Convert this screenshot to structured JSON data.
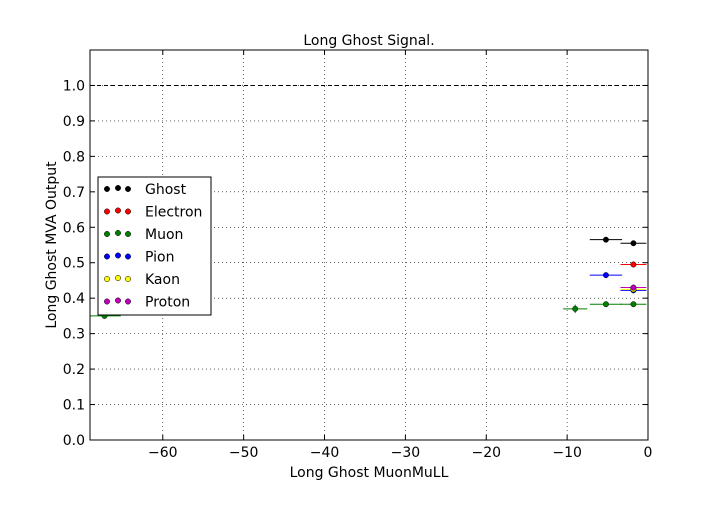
{
  "chart_data": {
    "type": "scatter",
    "title": "Long Ghost Signal.",
    "xlabel": "Long Ghost MuonMuLL",
    "ylabel": "Long Ghost MVA Output",
    "xlim": [
      -69,
      0
    ],
    "ylim": [
      0.0,
      1.1
    ],
    "xticks": [
      -60,
      -50,
      -40,
      -30,
      -20,
      -10,
      0
    ],
    "xtick_labels": [
      "−60",
      "−50",
      "−40",
      "−30",
      "−20",
      "−10",
      "0"
    ],
    "yticks": [
      0.0,
      0.1,
      0.2,
      0.3,
      0.4,
      0.5,
      0.6,
      0.7,
      0.8,
      0.9,
      1.0
    ],
    "ytick_labels": [
      "0.0",
      "0.1",
      "0.2",
      "0.3",
      "0.4",
      "0.5",
      "0.6",
      "0.7",
      "0.8",
      "0.9",
      "1.0"
    ],
    "grid": true,
    "legend_position": "center-left",
    "reference_line": {
      "y": 1.0,
      "style": "dashed",
      "color": "#000000"
    },
    "series": [
      {
        "name": "Ghost",
        "color": "#000000",
        "points": [
          {
            "x": -5.2,
            "xerr": 2.0,
            "y": 0.565,
            "yerr": 0.005
          },
          {
            "x": -1.8,
            "xerr": 1.6,
            "y": 0.555,
            "yerr": 0.005
          }
        ]
      },
      {
        "name": "Electron",
        "color": "#ff0000",
        "points": [
          {
            "x": -1.8,
            "xerr": 1.6,
            "y": 0.495,
            "yerr": 0.005
          }
        ]
      },
      {
        "name": "Muon",
        "color": "#008000",
        "points": [
          {
            "x": -67.2,
            "xerr": 2.0,
            "y": 0.35,
            "yerr": 0.005
          },
          {
            "x": -9.0,
            "xerr": 1.5,
            "y": 0.37,
            "yerr": 0.012
          },
          {
            "x": -5.2,
            "xerr": 2.0,
            "y": 0.383,
            "yerr": 0.004
          },
          {
            "x": -1.8,
            "xerr": 1.6,
            "y": 0.383,
            "yerr": 0.004
          }
        ]
      },
      {
        "name": "Pion",
        "color": "#0000ff",
        "points": [
          {
            "x": -5.2,
            "xerr": 2.0,
            "y": 0.465,
            "yerr": 0.005
          },
          {
            "x": -1.8,
            "xerr": 1.6,
            "y": 0.422,
            "yerr": 0.004
          }
        ]
      },
      {
        "name": "Kaon",
        "color": "#ffff00",
        "points": [
          {
            "x": -1.8,
            "xerr": 1.6,
            "y": 0.425,
            "yerr": 0.004
          }
        ]
      },
      {
        "name": "Proton",
        "color": "#bf00bf",
        "points": [
          {
            "x": -1.8,
            "xerr": 1.6,
            "y": 0.43,
            "yerr": 0.004
          }
        ]
      }
    ]
  }
}
